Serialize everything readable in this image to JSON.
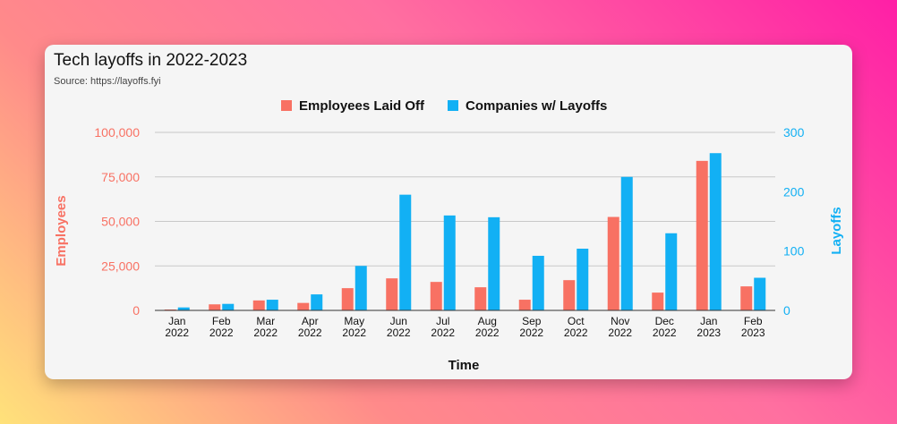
{
  "card": {
    "title": "Tech layoffs in 2022-2023",
    "subtitle": "Source: https://layoffs.fyi"
  },
  "chart_data": {
    "type": "bar",
    "categories": [
      [
        "Jan",
        "2022"
      ],
      [
        "Feb",
        "2022"
      ],
      [
        "Mar",
        "2022"
      ],
      [
        "Apr",
        "2022"
      ],
      [
        "May",
        "2022"
      ],
      [
        "Jun",
        "2022"
      ],
      [
        "Jul",
        "2022"
      ],
      [
        "Aug",
        "2022"
      ],
      [
        "Sep",
        "2022"
      ],
      [
        "Oct",
        "2022"
      ],
      [
        "Nov",
        "2022"
      ],
      [
        "Dec",
        "2022"
      ],
      [
        "Jan",
        "2023"
      ],
      [
        "Feb",
        "2023"
      ]
    ],
    "series": [
      {
        "name": "Employees Laid Off",
        "axis": "left",
        "color": "#f87163",
        "values": [
          500,
          3400,
          5600,
          4200,
          12500,
          18000,
          16000,
          13000,
          6000,
          17000,
          52500,
          10000,
          84000,
          13500
        ]
      },
      {
        "name": "Companies w/ Layoffs",
        "axis": "right",
        "color": "#12b0f4",
        "values": [
          5,
          11,
          18,
          27,
          75,
          195,
          160,
          157,
          92,
          104,
          225,
          130,
          265,
          55
        ]
      }
    ],
    "xlabel": "Time",
    "ylabel_left": "Employees",
    "ylabel_right": "Layoffs",
    "ylim_left": [
      0,
      100000
    ],
    "ylim_right": [
      0,
      300
    ],
    "yticks_left": [
      "0",
      "25,000",
      "50,000",
      "75,000",
      "100,000"
    ],
    "yticks_right": [
      "0",
      "100",
      "200",
      "300"
    ],
    "left_axis_color": "#f87163",
    "right_axis_color": "#12b0f4",
    "grid": true,
    "legend_position": "top-center"
  }
}
